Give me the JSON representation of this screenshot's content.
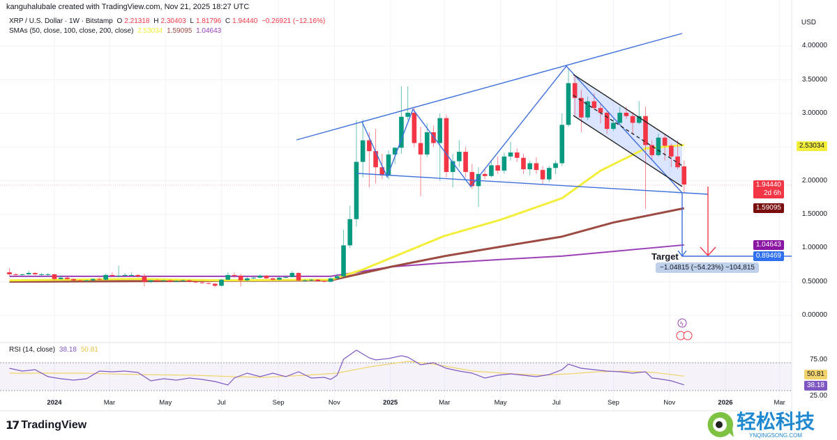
{
  "header": {
    "credit": "kanguhalubale created with TradingView.com, Nov 21, 2025 18:27 UTC"
  },
  "legend": {
    "symbol": "XRP / U.S. Dollar · 1W · Bitstamp",
    "o_label": "O",
    "o": "2.21318",
    "h_label": "H",
    "h": "2.30403",
    "l_label": "L",
    "l": "1.81796",
    "c_label": "C",
    "c": "1.94440",
    "change": "−0.26921 (−12.16%)",
    "sma_title": "SMAs (50, close, 100, close, 200, close)",
    "sma50": "2.53034",
    "sma100": "1.59095",
    "sma200": "1.04643"
  },
  "price_axis": {
    "currency": "USD",
    "ticks": [
      "4.00000",
      "3.50000",
      "3.00000",
      "2.00000",
      "1.50000",
      "1.00000",
      "0.50000",
      "0.00000"
    ],
    "tick_values": [
      4,
      3.5,
      3,
      2,
      1.5,
      1,
      0.5,
      0
    ],
    "tags": {
      "sma50": "2.53034",
      "last": "1.94440",
      "countdown": "2d 6h",
      "sma100": "1.59095",
      "sma200": "1.04643",
      "target": "0.89469"
    }
  },
  "annotations": {
    "target_label": "Target",
    "measure": "−1.04815 (−54.23%) −104,815"
  },
  "rsi": {
    "title": "RSI (14, close)",
    "value": "38.18",
    "ma_value": "50.81",
    "ticks": [
      "75.00",
      "25.00"
    ],
    "tick_values": [
      75,
      25
    ],
    "band": [
      30,
      70
    ],
    "points": [
      [
        "2023-11-13",
        62
      ],
      [
        "2023-11-27",
        58
      ],
      [
        "2023-12-11",
        60
      ],
      [
        "2023-12-25",
        50
      ],
      [
        "2024-01-08",
        47
      ],
      [
        "2024-01-22",
        45
      ],
      [
        "2024-02-05",
        47
      ],
      [
        "2024-02-19",
        58
      ],
      [
        "2024-03-04",
        57
      ],
      [
        "2024-03-18",
        58
      ],
      [
        "2024-04-01",
        56
      ],
      [
        "2024-04-15",
        44
      ],
      [
        "2024-04-29",
        47
      ],
      [
        "2024-05-13",
        45
      ],
      [
        "2024-05-27",
        48
      ],
      [
        "2024-06-10",
        46
      ],
      [
        "2024-06-24",
        43
      ],
      [
        "2024-07-08",
        38
      ],
      [
        "2024-07-15",
        48
      ],
      [
        "2024-07-29",
        55
      ],
      [
        "2024-08-12",
        50
      ],
      [
        "2024-08-26",
        55
      ],
      [
        "2024-09-09",
        50
      ],
      [
        "2024-09-23",
        57
      ],
      [
        "2024-10-07",
        48
      ],
      [
        "2024-10-21",
        49
      ],
      [
        "2024-10-28",
        46
      ],
      [
        "2024-11-04",
        52
      ],
      [
        "2024-11-11",
        75
      ],
      [
        "2024-11-25",
        88
      ],
      [
        "2024-12-09",
        77
      ],
      [
        "2024-12-16",
        74
      ],
      [
        "2024-12-30",
        76
      ],
      [
        "2025-01-13",
        80
      ],
      [
        "2025-01-20",
        78
      ],
      [
        "2025-02-03",
        67
      ],
      [
        "2025-02-17",
        70
      ],
      [
        "2025-03-03",
        62
      ],
      [
        "2025-03-17",
        58
      ],
      [
        "2025-03-31",
        55
      ],
      [
        "2025-04-14",
        48
      ],
      [
        "2025-04-28",
        52
      ],
      [
        "2025-05-12",
        54
      ],
      [
        "2025-05-26",
        52
      ],
      [
        "2025-06-09",
        50
      ],
      [
        "2025-06-23",
        53
      ],
      [
        "2025-07-07",
        60
      ],
      [
        "2025-07-14",
        68
      ],
      [
        "2025-07-28",
        62
      ],
      [
        "2025-08-11",
        60
      ],
      [
        "2025-08-25",
        58
      ],
      [
        "2025-09-08",
        57
      ],
      [
        "2025-09-22",
        55
      ],
      [
        "2025-10-06",
        57
      ],
      [
        "2025-10-13",
        48
      ],
      [
        "2025-10-20",
        47
      ],
      [
        "2025-11-03",
        44
      ],
      [
        "2025-11-17",
        38.18
      ]
    ],
    "ma_points": [
      [
        "2023-11-13",
        55
      ],
      [
        "2024-02-01",
        55
      ],
      [
        "2024-04-01",
        53
      ],
      [
        "2024-06-01",
        52
      ],
      [
        "2024-07-15",
        50
      ],
      [
        "2024-08-15",
        49
      ],
      [
        "2024-10-01",
        52
      ],
      [
        "2024-11-04",
        55
      ],
      [
        "2024-12-09",
        64
      ],
      [
        "2025-01-20",
        72
      ],
      [
        "2025-02-17",
        68
      ],
      [
        "2025-04-01",
        58
      ],
      [
        "2025-05-15",
        54
      ],
      [
        "2025-06-15",
        52
      ],
      [
        "2025-07-15",
        54
      ],
      [
        "2025-08-15",
        57
      ],
      [
        "2025-09-15",
        58
      ],
      [
        "2025-10-15",
        56
      ],
      [
        "2025-11-17",
        50.81
      ]
    ]
  },
  "time_axis": [
    {
      "label": "2024",
      "date": "2024-01-01",
      "bold": true
    },
    {
      "label": "Mar",
      "date": "2024-03-01"
    },
    {
      "label": "May",
      "date": "2024-05-01"
    },
    {
      "label": "Jul",
      "date": "2024-07-01"
    },
    {
      "label": "Sep",
      "date": "2024-09-01"
    },
    {
      "label": "Nov",
      "date": "2024-11-01"
    },
    {
      "label": "2025",
      "date": "2025-01-01",
      "bold": true
    },
    {
      "label": "Mar",
      "date": "2025-03-01"
    },
    {
      "label": "May",
      "date": "2025-05-01"
    },
    {
      "label": "Jul",
      "date": "2025-07-01"
    },
    {
      "label": "Sep",
      "date": "2025-09-01"
    },
    {
      "label": "Nov",
      "date": "2025-11-01"
    },
    {
      "label": "2026",
      "date": "2026-01-01",
      "bold": true
    },
    {
      "label": "Mar",
      "date": "2026-03-01"
    }
  ],
  "footer": {
    "brand": "TradingView",
    "watermark": "轻松科技",
    "watermark_url": "YNQINGSONG.COM"
  },
  "colors": {
    "up": "#089981",
    "down": "#f23645",
    "sma50": "#f2ee3a",
    "sma100": "#9c4a42",
    "sma200": "#9b3fb5",
    "drawing": "#3d6fdc",
    "rsi": "#7e57c2",
    "rsi_ma": "#f2d36b"
  },
  "chart_data": {
    "type": "candlestick",
    "interval": "1W",
    "first_week": "2023-11-13",
    "ylim": [
      -0.5,
      4.6
    ],
    "ohlc": [
      [
        0.64,
        0.7,
        0.59,
        0.61
      ],
      [
        0.61,
        0.63,
        0.58,
        0.6
      ],
      [
        0.6,
        0.62,
        0.59,
        0.61
      ],
      [
        0.61,
        0.66,
        0.6,
        0.63
      ],
      [
        0.63,
        0.64,
        0.6,
        0.61
      ],
      [
        0.61,
        0.63,
        0.59,
        0.61
      ],
      [
        0.61,
        0.63,
        0.59,
        0.61
      ],
      [
        0.61,
        0.62,
        0.52,
        0.54
      ],
      [
        0.54,
        0.59,
        0.53,
        0.56
      ],
      [
        0.56,
        0.57,
        0.53,
        0.54
      ],
      [
        0.54,
        0.55,
        0.51,
        0.52
      ],
      [
        0.52,
        0.53,
        0.5,
        0.51
      ],
      [
        0.51,
        0.53,
        0.5,
        0.52
      ],
      [
        0.52,
        0.55,
        0.51,
        0.54
      ],
      [
        0.54,
        0.56,
        0.52,
        0.53
      ],
      [
        0.53,
        0.62,
        0.52,
        0.6
      ],
      [
        0.6,
        0.64,
        0.57,
        0.59
      ],
      [
        0.59,
        0.74,
        0.57,
        0.59
      ],
      [
        0.59,
        0.63,
        0.58,
        0.6
      ],
      [
        0.6,
        0.64,
        0.58,
        0.6
      ],
      [
        0.6,
        0.61,
        0.56,
        0.58
      ],
      [
        0.58,
        0.62,
        0.43,
        0.5
      ],
      [
        0.5,
        0.53,
        0.48,
        0.52
      ],
      [
        0.52,
        0.54,
        0.5,
        0.51
      ],
      [
        0.51,
        0.53,
        0.5,
        0.52
      ],
      [
        0.52,
        0.53,
        0.49,
        0.5
      ],
      [
        0.5,
        0.52,
        0.49,
        0.51
      ],
      [
        0.51,
        0.53,
        0.5,
        0.52
      ],
      [
        0.52,
        0.53,
        0.49,
        0.5
      ],
      [
        0.5,
        0.51,
        0.48,
        0.49
      ],
      [
        0.49,
        0.5,
        0.47,
        0.48
      ],
      [
        0.48,
        0.49,
        0.46,
        0.47
      ],
      [
        0.47,
        0.48,
        0.42,
        0.44
      ],
      [
        0.44,
        0.54,
        0.43,
        0.53
      ],
      [
        0.53,
        0.64,
        0.52,
        0.6
      ],
      [
        0.6,
        0.64,
        0.56,
        0.59
      ],
      [
        0.59,
        0.62,
        0.43,
        0.52
      ],
      [
        0.52,
        0.57,
        0.51,
        0.55
      ],
      [
        0.55,
        0.57,
        0.54,
        0.56
      ],
      [
        0.56,
        0.61,
        0.55,
        0.59
      ],
      [
        0.59,
        0.6,
        0.54,
        0.55
      ],
      [
        0.55,
        0.56,
        0.52,
        0.53
      ],
      [
        0.53,
        0.57,
        0.52,
        0.56
      ],
      [
        0.56,
        0.58,
        0.55,
        0.57
      ],
      [
        0.57,
        0.66,
        0.56,
        0.63
      ],
      [
        0.63,
        0.64,
        0.51,
        0.52
      ],
      [
        0.52,
        0.54,
        0.5,
        0.52
      ],
      [
        0.52,
        0.54,
        0.51,
        0.53
      ],
      [
        0.53,
        0.54,
        0.5,
        0.51
      ],
      [
        0.51,
        0.52,
        0.49,
        0.5
      ],
      [
        0.5,
        0.56,
        0.49,
        0.55
      ],
      [
        0.55,
        0.62,
        0.54,
        0.58
      ],
      [
        0.58,
        1.27,
        0.57,
        1.04
      ],
      [
        1.04,
        1.63,
        1.0,
        1.43
      ],
      [
        1.43,
        2.9,
        1.32,
        2.28
      ],
      [
        2.28,
        2.91,
        2.05,
        2.6
      ],
      [
        2.6,
        2.72,
        1.9,
        2.44
      ],
      [
        2.44,
        2.77,
        1.96,
        2.2
      ],
      [
        2.2,
        2.4,
        2.02,
        2.08
      ],
      [
        2.08,
        2.45,
        2.02,
        2.39
      ],
      [
        2.39,
        2.5,
        2.25,
        2.49
      ],
      [
        2.49,
        3.4,
        2.4,
        2.95
      ],
      [
        2.95,
        3.4,
        2.9,
        3.01
      ],
      [
        3.01,
        3.1,
        2.5,
        2.56
      ],
      [
        2.56,
        2.8,
        1.77,
        2.39
      ],
      [
        2.39,
        2.85,
        2.35,
        2.72
      ],
      [
        2.72,
        2.82,
        2.5,
        2.56
      ],
      [
        2.56,
        3.0,
        2.0,
        2.93
      ],
      [
        2.93,
        2.98,
        2.05,
        2.13
      ],
      [
        2.13,
        2.4,
        1.9,
        2.29
      ],
      [
        2.29,
        2.6,
        2.2,
        2.43
      ],
      [
        2.43,
        2.5,
        2.05,
        2.13
      ],
      [
        2.13,
        2.25,
        1.88,
        1.92
      ],
      [
        1.92,
        2.2,
        1.61,
        2.1
      ],
      [
        2.1,
        2.18,
        2.02,
        2.07
      ],
      [
        2.07,
        2.3,
        2.05,
        2.23
      ],
      [
        2.23,
        2.36,
        2.1,
        2.15
      ],
      [
        2.15,
        2.42,
        2.1,
        2.36
      ],
      [
        2.36,
        2.58,
        2.3,
        2.42
      ],
      [
        2.42,
        2.48,
        2.28,
        2.34
      ],
      [
        2.34,
        2.4,
        2.1,
        2.17
      ],
      [
        2.17,
        2.3,
        2.08,
        2.26
      ],
      [
        2.26,
        2.35,
        2.1,
        2.16
      ],
      [
        2.16,
        2.22,
        1.95,
        2.02
      ],
      [
        2.02,
        2.22,
        1.98,
        2.19
      ],
      [
        2.19,
        2.3,
        2.1,
        2.26
      ],
      [
        2.26,
        3.0,
        2.22,
        2.83
      ],
      [
        2.83,
        3.66,
        2.8,
        3.45
      ],
      [
        3.45,
        3.55,
        2.95,
        3.23
      ],
      [
        3.23,
        3.35,
        2.72,
        2.94
      ],
      [
        2.94,
        3.25,
        2.9,
        3.18
      ],
      [
        3.18,
        3.3,
        3.05,
        3.08
      ],
      [
        3.08,
        3.15,
        2.85,
        3.01
      ],
      [
        3.01,
        3.05,
        2.7,
        2.77
      ],
      [
        2.77,
        2.92,
        2.74,
        2.86
      ],
      [
        2.86,
        3.1,
        2.84,
        3.01
      ],
      [
        3.01,
        3.1,
        2.92,
        2.96
      ],
      [
        2.96,
        3.02,
        2.7,
        2.86
      ],
      [
        2.86,
        3.18,
        2.84,
        2.96
      ],
      [
        2.96,
        3.1,
        1.58,
        2.53
      ],
      [
        2.53,
        2.6,
        2.3,
        2.38
      ],
      [
        2.38,
        2.7,
        2.36,
        2.64
      ],
      [
        2.64,
        2.7,
        2.3,
        2.52
      ],
      [
        2.52,
        2.55,
        2.2,
        2.36
      ],
      [
        2.36,
        2.6,
        2.17,
        2.2
      ],
      [
        2.21318,
        2.30403,
        1.81796,
        1.9444
      ]
    ],
    "sma50": [
      [
        "2023-11-13",
        0.52
      ],
      [
        "2024-04-01",
        0.54
      ],
      [
        "2024-07-01",
        0.52
      ],
      [
        "2024-10-28",
        0.53
      ],
      [
        "2024-12-02",
        0.68
      ],
      [
        "2025-01-01",
        0.85
      ],
      [
        "2025-03-01",
        1.18
      ],
      [
        "2025-05-01",
        1.42
      ],
      [
        "2025-07-07",
        1.74
      ],
      [
        "2025-08-18",
        2.15
      ],
      [
        "2025-10-06",
        2.48
      ],
      [
        "2025-11-17",
        2.53034
      ]
    ],
    "sma100": [
      [
        "2023-11-13",
        0.5
      ],
      [
        "2024-10-28",
        0.52
      ],
      [
        "2025-01-01",
        0.72
      ],
      [
        "2025-03-01",
        0.88
      ],
      [
        "2025-05-01",
        1.02
      ],
      [
        "2025-07-07",
        1.17
      ],
      [
        "2025-09-01",
        1.38
      ],
      [
        "2025-11-17",
        1.59095
      ]
    ],
    "sma200": [
      [
        "2023-11-13",
        0.58
      ],
      [
        "2024-10-28",
        0.58
      ],
      [
        "2025-01-01",
        0.72
      ],
      [
        "2025-03-01",
        0.78
      ],
      [
        "2025-05-01",
        0.83
      ],
      [
        "2025-07-07",
        0.88
      ],
      [
        "2025-09-01",
        0.95
      ],
      [
        "2025-11-17",
        1.04643
      ]
    ]
  }
}
